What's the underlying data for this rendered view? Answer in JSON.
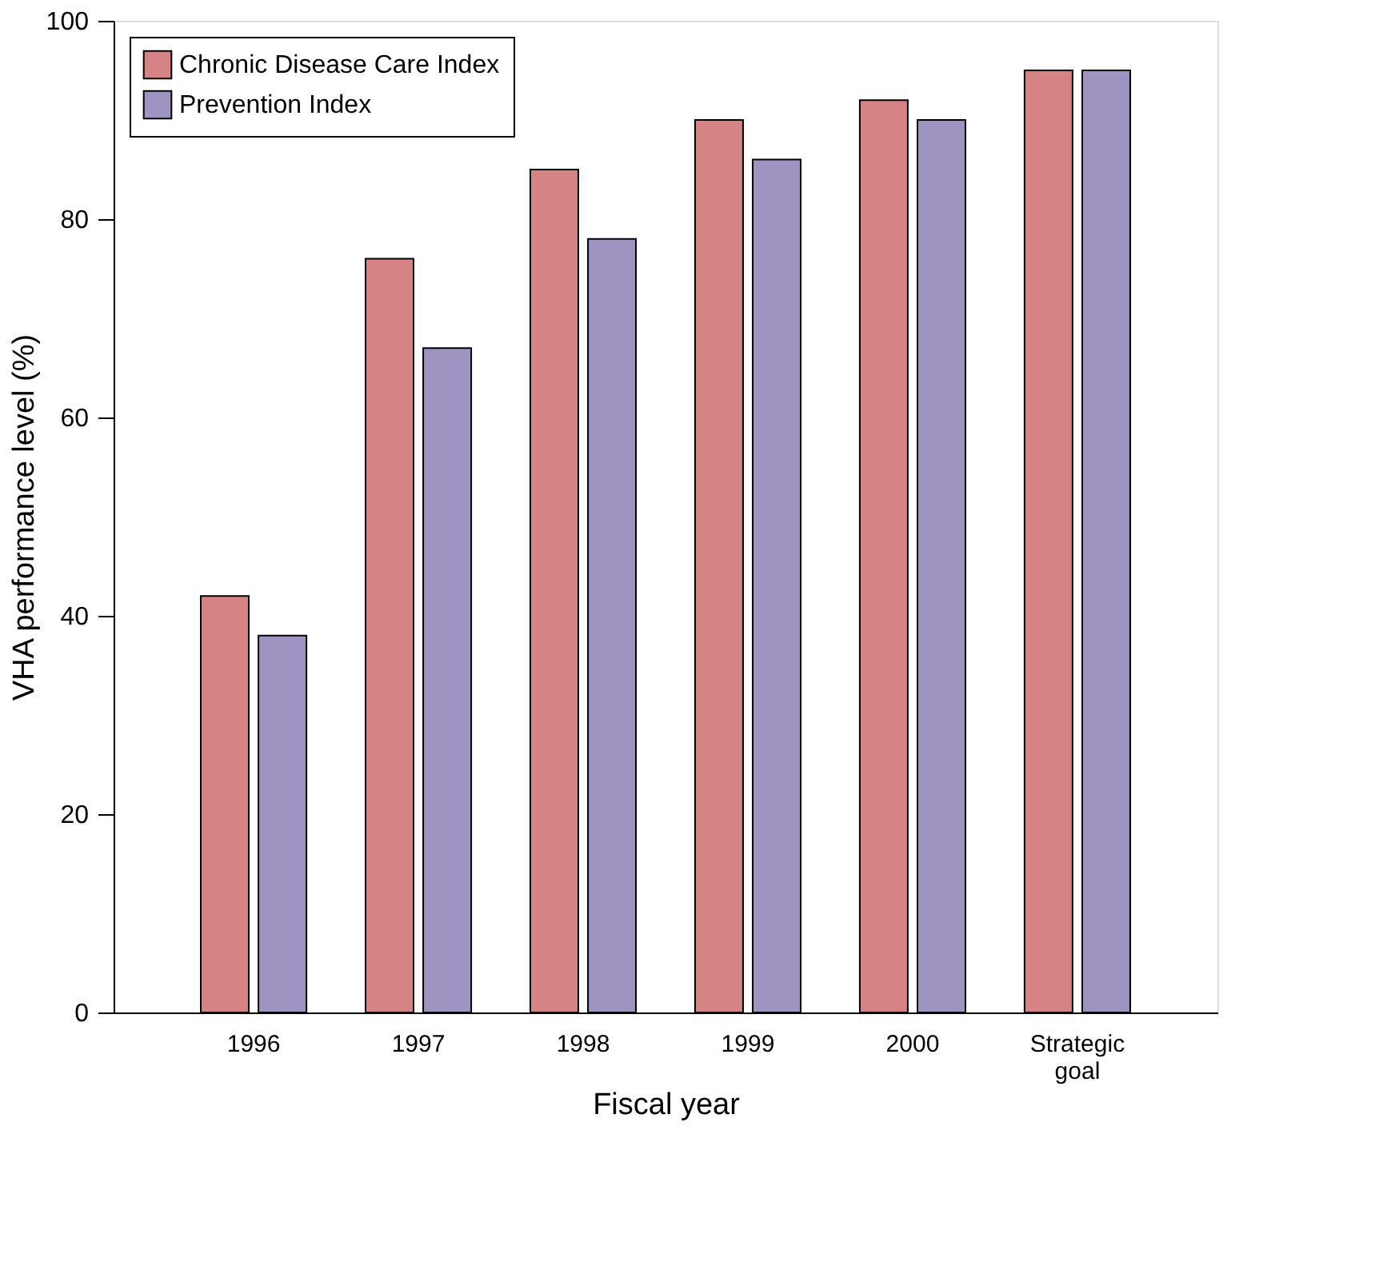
{
  "chart_data": {
    "type": "bar",
    "xlabel": "Fiscal year",
    "ylabel": "VHA performance level (%)",
    "categories": [
      "1996",
      "1997",
      "1998",
      "1999",
      "2000",
      "Strategic goal"
    ],
    "series": [
      {
        "name": "Chronic Disease Care Index",
        "color": "#d68384",
        "values": [
          42,
          76,
          85,
          90,
          92,
          95
        ]
      },
      {
        "name": "Prevention Index",
        "color": "#9f93c2",
        "values": [
          38,
          67,
          78,
          86,
          90,
          95
        ]
      }
    ],
    "ylim": [
      0,
      100
    ],
    "yticks": [
      0,
      20,
      40,
      60,
      80,
      100
    ],
    "grid": false,
    "legend": "top left"
  }
}
